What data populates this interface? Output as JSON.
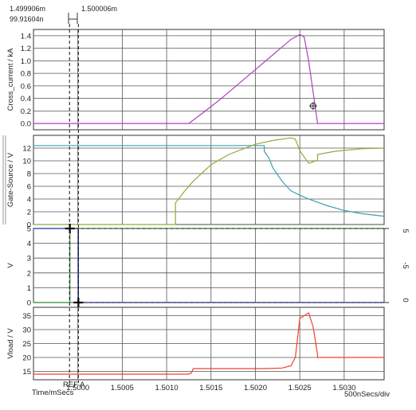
{
  "cursors": {
    "cursor1_time": "1.499906m",
    "cursor2_time": "1.500006m",
    "delta_time": "99.91604n",
    "ref_label": "REF A"
  },
  "footer": {
    "x_axis_label": "Time/mSecs",
    "time_per_div": "500nSecs/div"
  },
  "colors": {
    "grid": "#555555",
    "cross_current": "#b040c0",
    "gate_source_a": "#40a0b0",
    "gate_source_b": "#98a838",
    "v_green": "#2a8a2a",
    "v_blue": "#2030b0",
    "vload": "#f04030"
  },
  "chart_data": [
    {
      "type": "line",
      "id": "cross_current",
      "ylabel": "Cross_current / kA",
      "xlim": [
        1.4995,
        1.50345
      ],
      "ylim": [
        -0.1,
        1.5
      ],
      "yticks": [
        "0.0",
        "0.2",
        "0.4",
        "0.6",
        "0.8",
        "1.0",
        "1.2",
        "1.4"
      ],
      "series": [
        {
          "x": [
            1.4995,
            1.50125,
            1.5014,
            1.5016,
            1.5018,
            1.502,
            1.5022,
            1.5023,
            1.5024,
            1.50245,
            1.5025,
            1.50255,
            1.5026,
            1.50265,
            1.5027,
            1.50345
          ],
          "y": [
            0,
            0,
            0.16,
            0.38,
            0.62,
            0.86,
            1.1,
            1.22,
            1.34,
            1.38,
            1.42,
            1.38,
            1.0,
            0.5,
            0,
            0
          ]
        }
      ],
      "marker": {
        "x": 1.50265,
        "y": 0.28
      }
    },
    {
      "type": "line",
      "id": "gate_source",
      "ylabel": "Gate-Source / V",
      "xlim": [
        1.4995,
        1.50345
      ],
      "ylim": [
        0,
        14
      ],
      "yticks": [
        "0",
        "2",
        "4",
        "6",
        "8",
        "10",
        "12"
      ],
      "series": [
        {
          "x": [
            1.4995,
            1.5021,
            1.5021,
            1.50215,
            1.5022,
            1.5023,
            1.5024,
            1.5025,
            1.5026,
            1.5028,
            1.503,
            1.5032,
            1.50345
          ],
          "y": [
            12.4,
            12.4,
            11.5,
            10.5,
            8.8,
            6.8,
            5.3,
            4.6,
            4.0,
            3.0,
            2.2,
            1.7,
            1.3
          ]
        },
        {
          "x": [
            1.4995,
            1.5011,
            1.5011,
            1.5012,
            1.5013,
            1.5015,
            1.5017,
            1.502,
            1.5022,
            1.5024,
            1.50245,
            1.5025,
            1.5026,
            1.5027,
            1.5027,
            1.5029,
            1.5032,
            1.50345
          ],
          "y": [
            0,
            0,
            3.4,
            5.2,
            6.8,
            9.4,
            11.0,
            12.6,
            13.2,
            13.6,
            13.4,
            11.6,
            9.6,
            10.1,
            11.0,
            11.5,
            11.9,
            12.0
          ]
        }
      ]
    },
    {
      "type": "line",
      "id": "v",
      "ylabel": "V",
      "y2label": "5",
      "y2label_low": "-5",
      "y2label_zero": "0",
      "xlim": [
        1.4995,
        1.50345
      ],
      "ylim": [
        0,
        5
      ],
      "yticks": [
        "0",
        "1",
        "2",
        "3",
        "4",
        "5"
      ],
      "series": [
        {
          "x": [
            1.4995,
            1.49991,
            1.49991,
            1.50345
          ],
          "y": [
            0,
            0,
            5,
            5
          ]
        },
        {
          "x": [
            1.4995,
            1.500006,
            1.500006,
            1.50345
          ],
          "y": [
            5,
            5,
            0,
            0
          ]
        }
      ]
    },
    {
      "type": "line",
      "id": "vload",
      "ylabel": "Vload / V",
      "xlim": [
        1.4995,
        1.50345
      ],
      "ylim": [
        12,
        38
      ],
      "yticks": [
        "15",
        "20",
        "25",
        "30",
        "35"
      ],
      "xticks": [
        "1.5000",
        "1.5005",
        "1.5010",
        "1.5015",
        "1.5020",
        "1.5025",
        "1.5030"
      ],
      "series": [
        {
          "x": [
            1.4995,
            1.50125,
            1.50128,
            1.5013,
            1.50135,
            1.5015,
            1.5021,
            1.5023,
            1.5024,
            1.50245,
            1.5025,
            1.5026,
            1.50265,
            1.5027,
            1.5027,
            1.50345
          ],
          "y": [
            14,
            14,
            14.5,
            16,
            16,
            16,
            16,
            16.2,
            17,
            20,
            34,
            36,
            31,
            21,
            20,
            20
          ]
        }
      ]
    }
  ]
}
